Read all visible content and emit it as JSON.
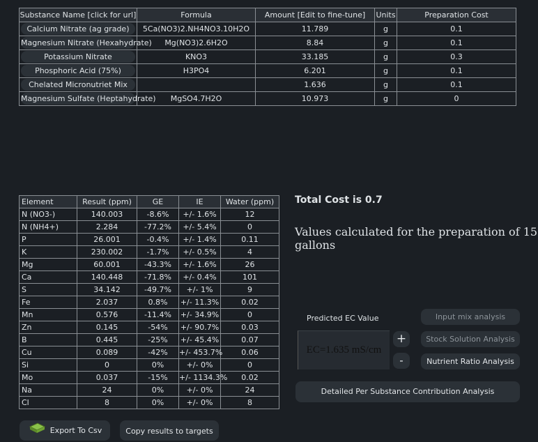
{
  "substances": {
    "headers": [
      "Substance Name [click for url]",
      "Formula",
      "Amount [Edit to fine-tune]",
      "Units",
      "Preparation Cost"
    ],
    "rows": [
      [
        "Calcium Nitrate (ag grade)",
        "5Ca(NO3)2.NH4NO3.10H2O",
        "11.789",
        "g",
        "0.1"
      ],
      [
        "Magnesium Nitrate (Hexahydrate)",
        "Mg(NO3)2.6H2O",
        "8.84",
        "g",
        "0.1"
      ],
      [
        "Potassium Nitrate",
        "KNO3",
        "33.185",
        "g",
        "0.3"
      ],
      [
        "Phosphoric Acid (75%)",
        "H3PO4",
        "6.201",
        "g",
        "0.1"
      ],
      [
        "Chelated Micronutriet Mix",
        "",
        "1.636",
        "g",
        "0.1"
      ],
      [
        "Magnesium Sulfate (Heptahydrate)",
        "MgSO4.7H2O",
        "10.973",
        "g",
        "0"
      ]
    ]
  },
  "results": {
    "headers": [
      "Element",
      "Result (ppm)",
      "GE",
      "IE",
      "Water (ppm)"
    ],
    "rows": [
      [
        "N (NO3-)",
        "140.003",
        "-8.6%",
        "+/- 1.6%",
        "12"
      ],
      [
        "N (NH4+)",
        "2.284",
        "-77.2%",
        "+/- 5.4%",
        "0"
      ],
      [
        "P",
        "26.001",
        "-0.4%",
        "+/- 1.4%",
        "0.11"
      ],
      [
        "K",
        "230.002",
        "-1.7%",
        "+/- 0.5%",
        "4"
      ],
      [
        "Mg",
        "60.001",
        "-43.3%",
        "+/- 1.6%",
        "26"
      ],
      [
        "Ca",
        "140.448",
        "-71.8%",
        "+/- 0.4%",
        "101"
      ],
      [
        "S",
        "34.142",
        "-49.7%",
        "+/- 1%",
        "9"
      ],
      [
        "Fe",
        "2.037",
        "0.8%",
        "+/- 11.3%",
        "0.02"
      ],
      [
        "Mn",
        "0.576",
        "-11.4%",
        "+/- 34.9%",
        "0"
      ],
      [
        "Zn",
        "0.145",
        "-54%",
        "+/- 90.7%",
        "0.03"
      ],
      [
        "B",
        "0.445",
        "-25%",
        "+/- 45.4%",
        "0.07"
      ],
      [
        "Cu",
        "0.089",
        "-42%",
        "+/- 453.7%",
        "0.06"
      ],
      [
        "Si",
        "0",
        "0%",
        "+/- 0%",
        "0"
      ],
      [
        "Mo",
        "0.037",
        "-15%",
        "+/- 1134.3%",
        "0.02"
      ],
      [
        "Na",
        "24",
        "0%",
        "+/- 0%",
        "24"
      ],
      [
        "Cl",
        "8",
        "0%",
        "+/- 0%",
        "8"
      ]
    ]
  },
  "total_cost": "Total Cost is 0.7",
  "gallons_text": "Values calculated for the preparation of 15 gallons",
  "ec": {
    "label": "Predicted EC Value",
    "value": "EC=1.635 mS/cm",
    "plus": "+",
    "minus": "-"
  },
  "buttons": {
    "input_mix": "Input mix analysis",
    "stock": "Stock Solution Analysis",
    "ratio": "Nutrient Ratio Analysis",
    "detailed": "Detailed Per Substance Contribution Analysis",
    "export": "Export To Csv",
    "copy": "Copy results to targets"
  },
  "icons": {
    "export": "export-csv-icon"
  }
}
